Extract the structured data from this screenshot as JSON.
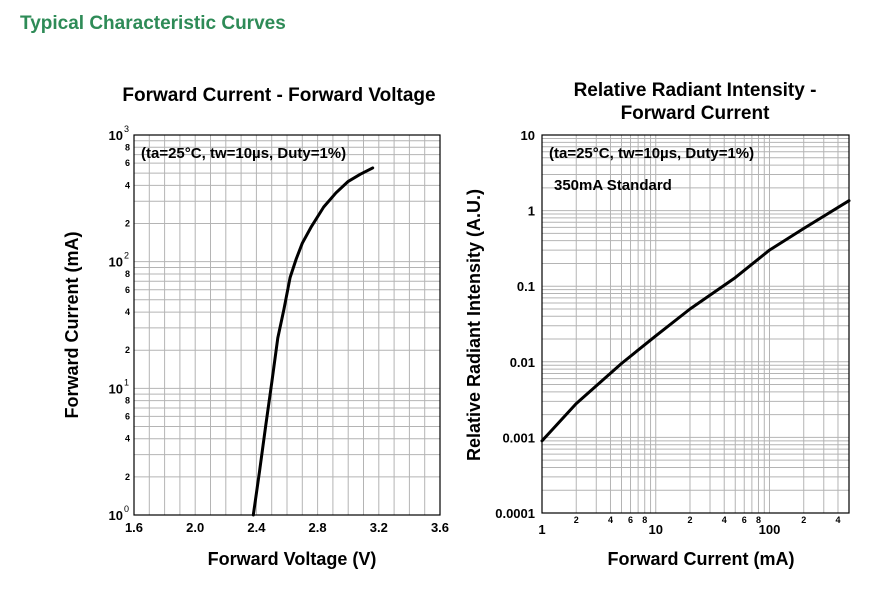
{
  "page_heading": "Typical Characteristic Curves",
  "colors": {
    "heading": "#2e8b57",
    "curve": "#000000",
    "grid": "#b4b4b4"
  },
  "chart_data": [
    {
      "type": "line",
      "title": "Forward Current - Forward Voltage",
      "xlabel": "Forward Voltage (V)",
      "ylabel": "Forward Current (mA)",
      "annotations": [
        "(ta=25°C, tw=10µs, Duty=1%)"
      ],
      "xscale": "linear",
      "yscale": "log",
      "xlim": [
        1.6,
        3.6
      ],
      "ylim": [
        1,
        1000
      ],
      "grid": true,
      "x_ticks": [
        "1.6",
        "2.0",
        "2.4",
        "2.8",
        "3.2",
        "3.6"
      ],
      "y_ticks": [
        {
          "base": "10",
          "exp": "0"
        },
        {
          "base": "10",
          "exp": "1"
        },
        {
          "base": "10",
          "exp": "2"
        },
        {
          "base": "10",
          "exp": "3"
        }
      ],
      "y_minor_ticks": [
        "2",
        "4",
        "6",
        "8"
      ],
      "series": [
        {
          "x": [
            2.38,
            2.42,
            2.46,
            2.5,
            2.54,
            2.58,
            2.62,
            2.66,
            2.7,
            2.76,
            2.84,
            2.92,
            3.0,
            3.08,
            3.16
          ],
          "y": [
            1,
            2.2,
            5,
            11,
            25,
            42,
            75,
            105,
            140,
            190,
            270,
            350,
            430,
            490,
            550
          ]
        }
      ]
    },
    {
      "type": "line",
      "title": "Relative Radiant Intensity -\nForward Current",
      "xlabel": "Forward Current (mA)",
      "ylabel": "Relative Radiant Intensity (A.U.)",
      "annotations": [
        "(ta=25°C, tw=10µs, Duty=1%)",
        "350mA Standard"
      ],
      "xscale": "log",
      "yscale": "log",
      "xlim": [
        1,
        500
      ],
      "ylim": [
        0.0001,
        10
      ],
      "grid": true,
      "x_ticks": [
        "1",
        "10",
        "100"
      ],
      "x_minor_ticks": [
        "2",
        "4",
        "6",
        "8"
      ],
      "y_ticks": [
        "0.0001",
        "0.001",
        "0.01",
        "0.1",
        "1",
        "10"
      ],
      "series": [
        {
          "x": [
            1,
            2,
            5,
            10,
            20,
            50,
            100,
            200,
            500
          ],
          "y": [
            0.0009,
            0.0028,
            0.0095,
            0.022,
            0.05,
            0.13,
            0.3,
            0.58,
            1.35
          ]
        }
      ]
    }
  ]
}
